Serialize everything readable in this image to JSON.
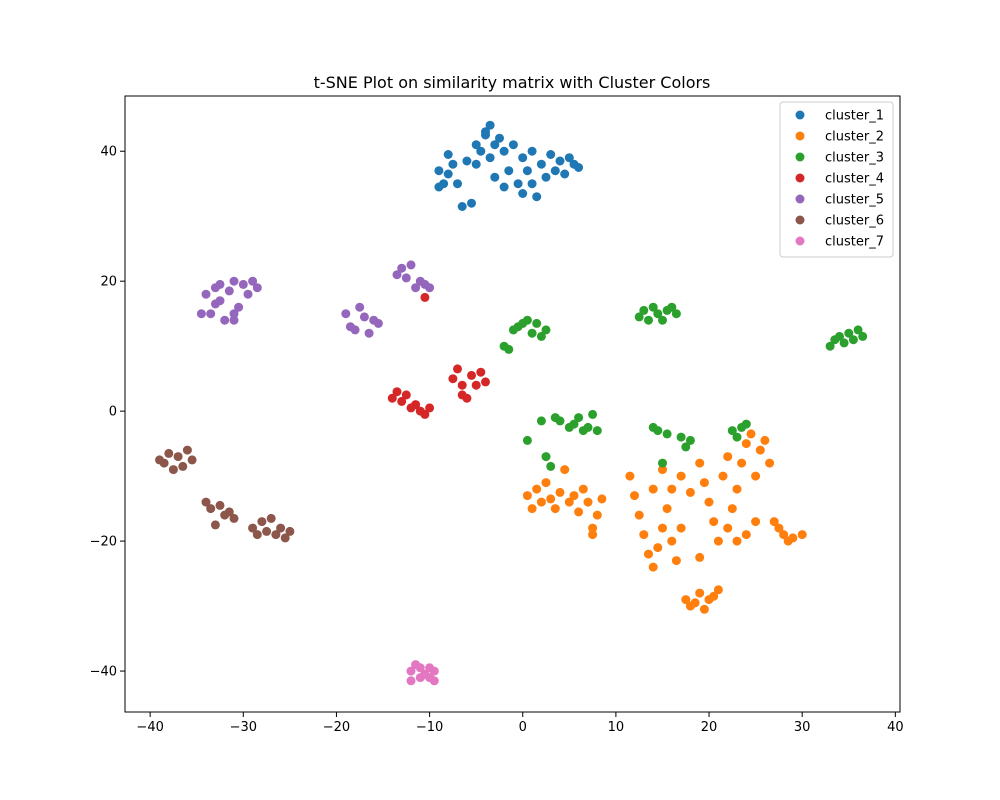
{
  "chart_data": {
    "type": "scatter",
    "title": "t-SNE Plot on similarity matrix with Cluster Colors",
    "xlabel": "",
    "ylabel": "",
    "xlim": [
      -42.7,
      40.5
    ],
    "ylim": [
      -46.3,
      48.5
    ],
    "x_ticks": [
      -40,
      -30,
      -20,
      -10,
      0,
      10,
      20,
      30,
      40
    ],
    "y_ticks": [
      -40,
      -20,
      0,
      20,
      40
    ],
    "x_tick_labels": [
      "−40",
      "−30",
      "−20",
      "−10",
      "0",
      "10",
      "20",
      "30",
      "40"
    ],
    "y_tick_labels": [
      "−40",
      "−20",
      "0",
      "20",
      "40"
    ],
    "grid": false,
    "legend_position": "top-right",
    "series": [
      {
        "name": "cluster_1",
        "color": "#1f77b4",
        "points": [
          [
            -9,
            37
          ],
          [
            -8.5,
            35
          ],
          [
            -8,
            36.5
          ],
          [
            -7.5,
            38
          ],
          [
            -7,
            35
          ],
          [
            -6.5,
            31.5
          ],
          [
            -6,
            38.5
          ],
          [
            -5.5,
            32
          ],
          [
            -5,
            41
          ],
          [
            -5,
            38
          ],
          [
            -4.5,
            40
          ],
          [
            -4,
            42.5
          ],
          [
            -3.5,
            44
          ],
          [
            -3.5,
            39
          ],
          [
            -3,
            36
          ],
          [
            -2.5,
            42
          ],
          [
            -2,
            40
          ],
          [
            -2,
            34.5
          ],
          [
            -1.5,
            37
          ],
          [
            -1,
            41
          ],
          [
            -0.5,
            35
          ],
          [
            0,
            39
          ],
          [
            0,
            33.5
          ],
          [
            0.5,
            37
          ],
          [
            1,
            40
          ],
          [
            1,
            35
          ],
          [
            1.5,
            33
          ],
          [
            2,
            38
          ],
          [
            2.5,
            36
          ],
          [
            3,
            39.5
          ],
          [
            3.5,
            37
          ],
          [
            4,
            38.5
          ],
          [
            4.5,
            36.5
          ],
          [
            5,
            39
          ],
          [
            5.5,
            38
          ],
          [
            6,
            37.5
          ],
          [
            -9,
            34.5
          ],
          [
            -8,
            39.5
          ],
          [
            -4,
            43
          ],
          [
            -3,
            41
          ]
        ]
      },
      {
        "name": "cluster_2",
        "color": "#ff7f0e",
        "points": [
          [
            0.5,
            -13
          ],
          [
            1,
            -15
          ],
          [
            1.5,
            -12
          ],
          [
            2,
            -14
          ],
          [
            2.5,
            -11
          ],
          [
            3,
            -13.5
          ],
          [
            3.5,
            -15
          ],
          [
            4,
            -12.5
          ],
          [
            4.5,
            -9
          ],
          [
            5,
            -14
          ],
          [
            5.5,
            -13
          ],
          [
            6,
            -15.5
          ],
          [
            6.5,
            -12
          ],
          [
            7,
            -14
          ],
          [
            7.5,
            -18
          ],
          [
            8,
            -16
          ],
          [
            8.5,
            -13.5
          ],
          [
            7.5,
            -19
          ],
          [
            11.5,
            -10
          ],
          [
            12,
            -13
          ],
          [
            12.5,
            -16
          ],
          [
            13,
            -19
          ],
          [
            13.5,
            -22
          ],
          [
            14,
            -24
          ],
          [
            14.5,
            -21
          ],
          [
            15,
            -18
          ],
          [
            15.5,
            -15
          ],
          [
            16,
            -20
          ],
          [
            16.5,
            -23
          ],
          [
            17,
            -18
          ],
          [
            17.5,
            -29
          ],
          [
            18,
            -30
          ],
          [
            18.5,
            -29.5
          ],
          [
            19,
            -28
          ],
          [
            19.5,
            -30.5
          ],
          [
            20,
            -29
          ],
          [
            20.5,
            -28.5
          ],
          [
            21,
            -27.5
          ],
          [
            19,
            -8
          ],
          [
            19.5,
            -11
          ],
          [
            20,
            -14
          ],
          [
            20.5,
            -17
          ],
          [
            21,
            -20
          ],
          [
            21.5,
            -10
          ],
          [
            22,
            -18
          ],
          [
            22.5,
            -15
          ],
          [
            23,
            -12
          ],
          [
            23.5,
            -8
          ],
          [
            24,
            -5
          ],
          [
            24.5,
            -3.5
          ],
          [
            25,
            -10
          ],
          [
            25.5,
            -6
          ],
          [
            26,
            -4.5
          ],
          [
            26.5,
            -8
          ],
          [
            27,
            -17
          ],
          [
            27.5,
            -18
          ],
          [
            28,
            -19
          ],
          [
            28.5,
            -20
          ],
          [
            29,
            -19.5
          ],
          [
            30,
            -19
          ],
          [
            23,
            -20
          ],
          [
            24,
            -19
          ],
          [
            25,
            -17
          ],
          [
            19,
            -22.5
          ],
          [
            14,
            -12
          ],
          [
            15,
            -9
          ],
          [
            16,
            -12
          ],
          [
            17,
            -10
          ],
          [
            18,
            -12.5
          ],
          [
            22,
            -7
          ]
        ]
      },
      {
        "name": "cluster_3",
        "color": "#2ca02c",
        "points": [
          [
            -2,
            10
          ],
          [
            -1.5,
            9.5
          ],
          [
            -1,
            12.5
          ],
          [
            -0.5,
            13
          ],
          [
            0,
            13.5
          ],
          [
            0.5,
            14
          ],
          [
            1,
            12
          ],
          [
            1.5,
            13.5
          ],
          [
            2,
            11.5
          ],
          [
            2.5,
            12.5
          ],
          [
            12.5,
            14.5
          ],
          [
            13,
            15.5
          ],
          [
            13.5,
            14
          ],
          [
            14,
            16
          ],
          [
            14.5,
            15
          ],
          [
            15,
            14
          ],
          [
            15.5,
            15.5
          ],
          [
            16,
            16
          ],
          [
            16.5,
            15
          ],
          [
            33,
            10
          ],
          [
            33.5,
            11
          ],
          [
            34,
            11.5
          ],
          [
            34.5,
            10.5
          ],
          [
            35,
            12
          ],
          [
            35.5,
            11
          ],
          [
            36,
            12.5
          ],
          [
            36.5,
            11.5
          ],
          [
            0.5,
            -4.5
          ],
          [
            2,
            -1.5
          ],
          [
            2.5,
            -7
          ],
          [
            3,
            -8.5
          ],
          [
            3.5,
            -1
          ],
          [
            4,
            -1.5
          ],
          [
            5,
            -2.5
          ],
          [
            5.5,
            -2
          ],
          [
            6,
            -1
          ],
          [
            6.5,
            -3
          ],
          [
            7,
            -2.5
          ],
          [
            7.5,
            -0.5
          ],
          [
            8,
            -3
          ],
          [
            14,
            -2.5
          ],
          [
            14.5,
            -3
          ],
          [
            15,
            -8
          ],
          [
            15.5,
            -3.5
          ],
          [
            17,
            -4
          ],
          [
            17.5,
            -5.5
          ],
          [
            18,
            -4.5
          ],
          [
            22.5,
            -3
          ],
          [
            23,
            -4
          ],
          [
            23.5,
            -2.5
          ],
          [
            24,
            -2
          ]
        ]
      },
      {
        "name": "cluster_4",
        "color": "#d62728",
        "points": [
          [
            -14,
            2
          ],
          [
            -13.5,
            3
          ],
          [
            -13,
            1.5
          ],
          [
            -12.5,
            2.5
          ],
          [
            -12,
            0.5
          ],
          [
            -11.5,
            1
          ],
          [
            -11,
            0
          ],
          [
            -10.5,
            -0.5
          ],
          [
            -10,
            0.5
          ],
          [
            -10.5,
            17.5
          ],
          [
            -7.5,
            5
          ],
          [
            -7,
            6.5
          ],
          [
            -6.5,
            4
          ],
          [
            -6,
            2
          ],
          [
            -5.5,
            5.5
          ],
          [
            -5,
            4
          ],
          [
            -4.5,
            6
          ],
          [
            -4,
            4.5
          ],
          [
            -6.5,
            2.5
          ]
        ]
      },
      {
        "name": "cluster_5",
        "color": "#9467bd",
        "points": [
          [
            -34,
            18
          ],
          [
            -33.5,
            15
          ],
          [
            -33,
            19
          ],
          [
            -32.5,
            17
          ],
          [
            -32,
            14
          ],
          [
            -31.5,
            18.5
          ],
          [
            -31,
            20
          ],
          [
            -30.5,
            16
          ],
          [
            -30,
            19.5
          ],
          [
            -29.5,
            18
          ],
          [
            -29,
            20
          ],
          [
            -28.5,
            19
          ],
          [
            -31,
            15
          ],
          [
            -33,
            16.5
          ],
          [
            -34.5,
            15
          ],
          [
            -31,
            14
          ],
          [
            -32.5,
            19.5
          ],
          [
            -19,
            15
          ],
          [
            -18.5,
            13
          ],
          [
            -18,
            12.5
          ],
          [
            -17.5,
            16
          ],
          [
            -17,
            14.5
          ],
          [
            -16.5,
            12
          ],
          [
            -16,
            14
          ],
          [
            -15.5,
            13.5
          ],
          [
            -13.5,
            21
          ],
          [
            -13,
            22
          ],
          [
            -12.5,
            20.5
          ],
          [
            -12,
            22.5
          ],
          [
            -11.5,
            19
          ],
          [
            -11,
            20
          ],
          [
            -10.5,
            19.5
          ],
          [
            -10,
            19
          ]
        ]
      },
      {
        "name": "cluster_6",
        "color": "#8c564b",
        "points": [
          [
            -39,
            -7.5
          ],
          [
            -38.5,
            -8
          ],
          [
            -38,
            -6.5
          ],
          [
            -37.5,
            -9
          ],
          [
            -37,
            -7
          ],
          [
            -36.5,
            -8.5
          ],
          [
            -36,
            -6
          ],
          [
            -35.5,
            -7.5
          ],
          [
            -34,
            -14
          ],
          [
            -33.5,
            -15
          ],
          [
            -33,
            -17.5
          ],
          [
            -32.5,
            -14.5
          ],
          [
            -32,
            -16
          ],
          [
            -31.5,
            -15.5
          ],
          [
            -31,
            -16.5
          ],
          [
            -29,
            -18
          ],
          [
            -28.5,
            -19
          ],
          [
            -28,
            -17
          ],
          [
            -27.5,
            -18.5
          ],
          [
            -27,
            -16.5
          ],
          [
            -26.5,
            -19
          ],
          [
            -26,
            -18
          ],
          [
            -25.5,
            -19.5
          ],
          [
            -25,
            -18.5
          ]
        ]
      },
      {
        "name": "cluster_7",
        "color": "#e377c2",
        "points": [
          [
            -12,
            -40
          ],
          [
            -11.5,
            -39
          ],
          [
            -11,
            -41
          ],
          [
            -10.5,
            -40.5
          ],
          [
            -10,
            -39.5
          ],
          [
            -9.5,
            -41.5
          ],
          [
            -12,
            -41.5
          ],
          [
            -11,
            -39.5
          ],
          [
            -10,
            -41
          ],
          [
            -9.5,
            -40
          ]
        ]
      }
    ]
  }
}
